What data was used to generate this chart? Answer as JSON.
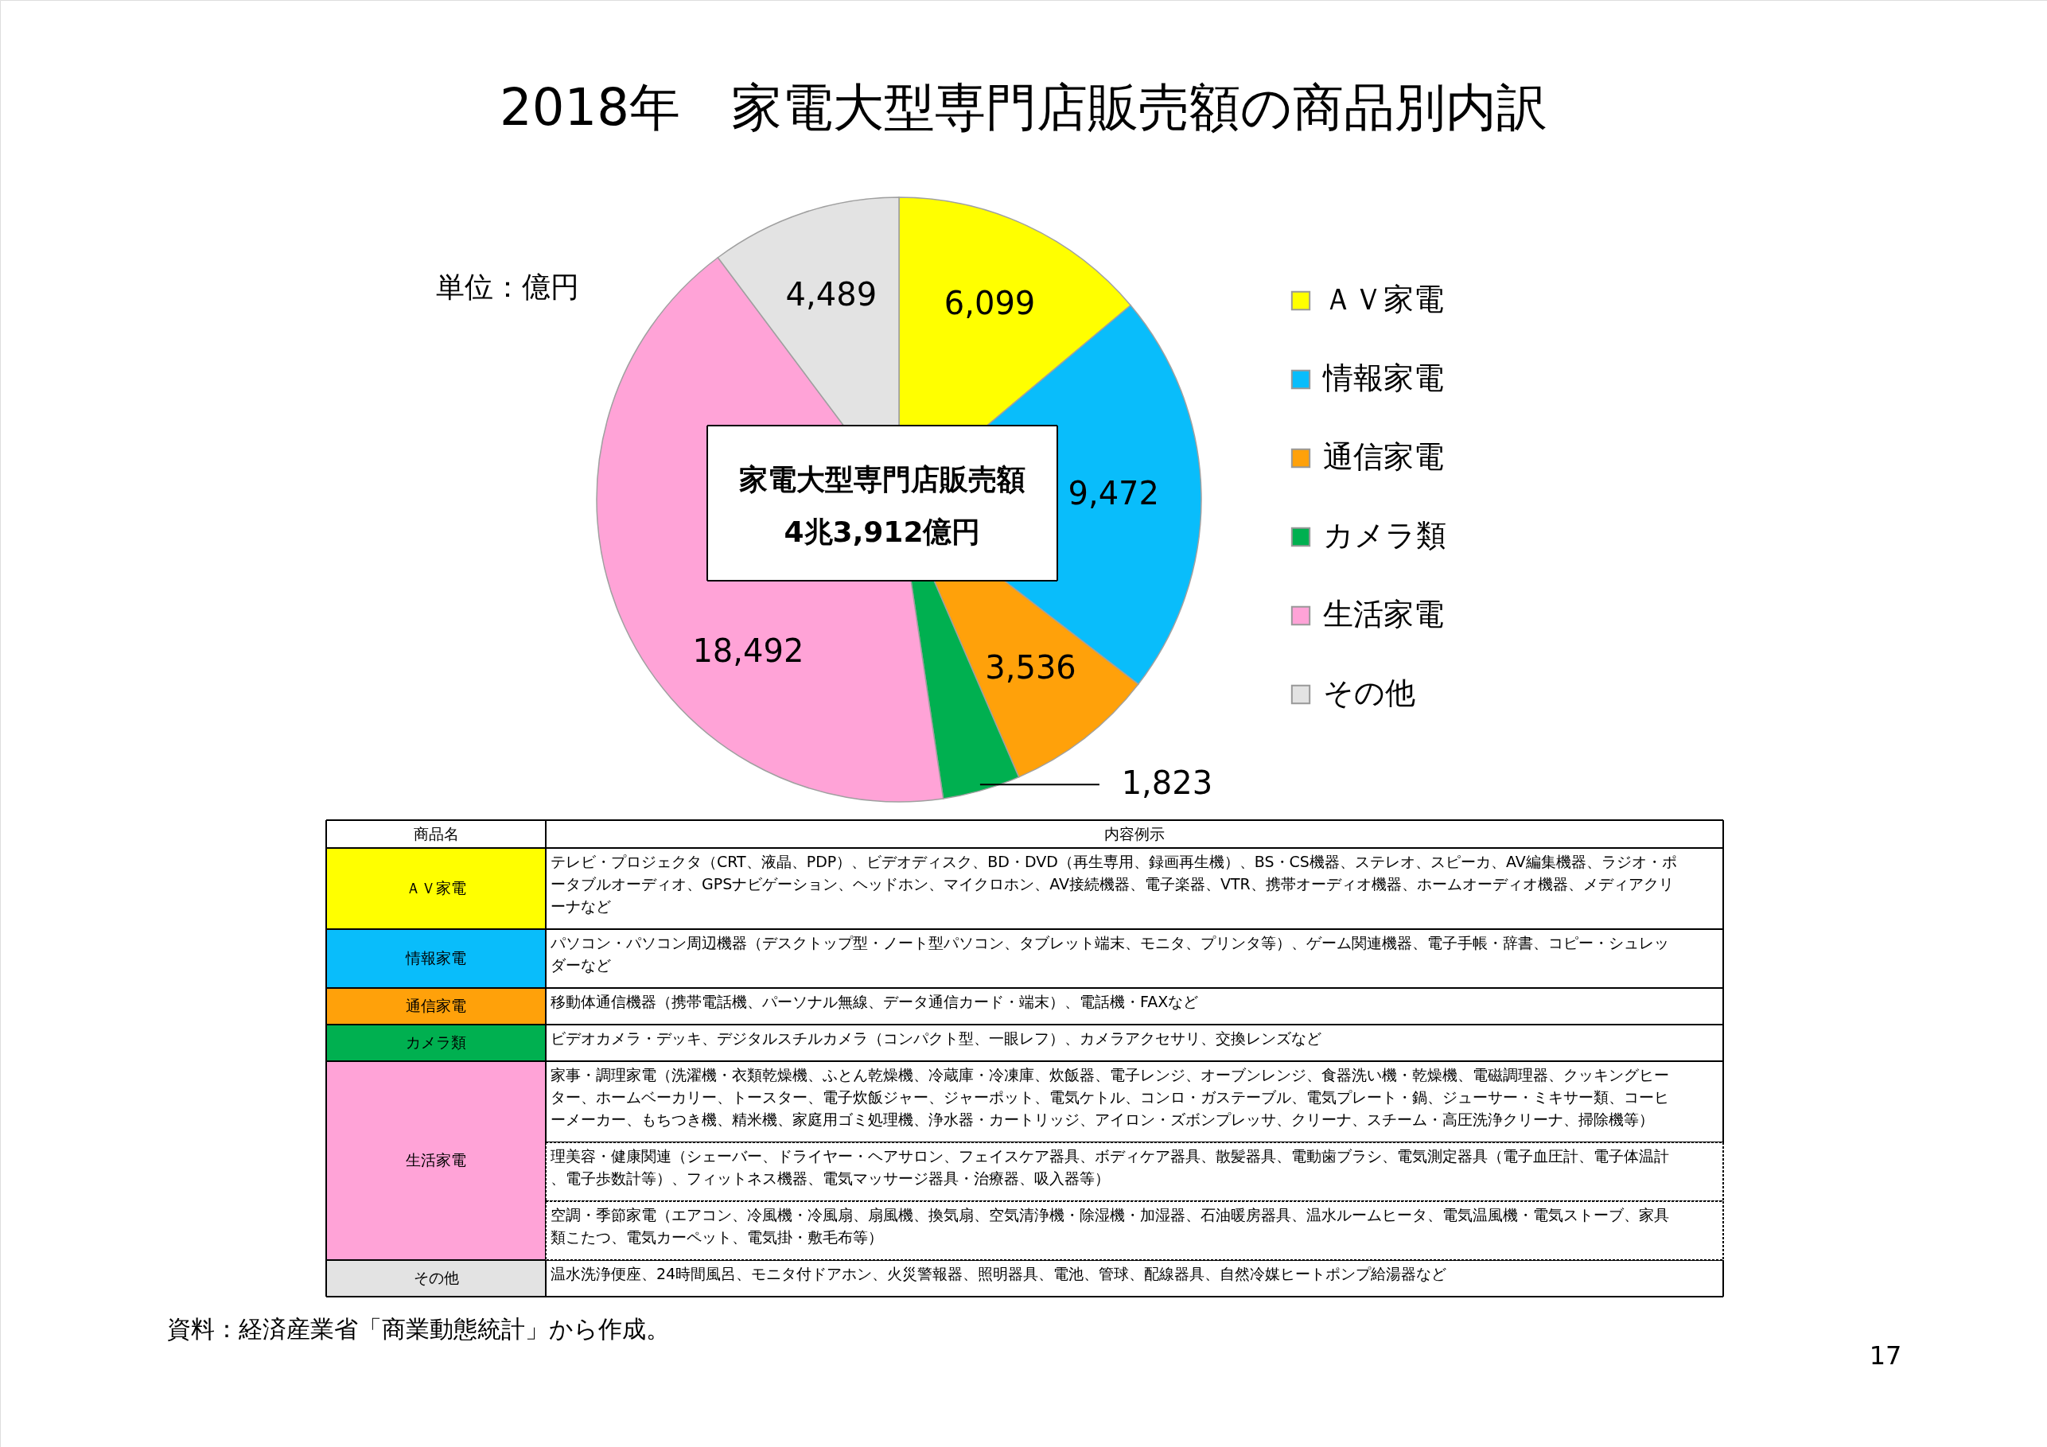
{
  "chart_data": {
    "type": "pie",
    "title": "2018年　家電大型専門店販売額の商品別内訳",
    "categories": [
      "ＡＶ家電",
      "情報家電",
      "通信家電",
      "カメラ類",
      "生活家電",
      "その他"
    ],
    "values": [
      6099,
      9472,
      3536,
      1823,
      18492,
      4489
    ],
    "colors": [
      "#ffff00",
      "#09bdfb",
      "#ffa10a",
      "#00b050",
      "#ffa3d7",
      "#e3e3e3"
    ],
    "value_labels": [
      "6,099",
      "9,472",
      "3,536",
      "1,823",
      "18,492",
      "4,489"
    ],
    "legend": "right",
    "annotations": [
      "単位：億円",
      "家電大型専門店販売額",
      "4兆3,912億円",
      "商品名",
      "内容例示",
      "テレビ・プロジェクタ（CRT、液晶、PDP）、ビデオディスク、BD・DVD（再生専用、録画再生機）、BS・CS機器、ステレオ、スピーカ、AV編集機器、ラジオ・ポータブルオーディオ、GPSナビゲーション、ヘッドホン、マイクロホン、AV接続機器、電子楽器、VTR、携帯オーディオ機器、ホームオーディオ機器、メディアクリーナなど",
      "パソコン・パソコン周辺機器（デスクトップ型・ノート型パソコン、タブレット端末、モニタ、プリンタ等）、ゲーム関連機器、電子手帳・辞書、コピー・シュレッダーなど",
      "移動体通信機器（携帯電話機、パーソナル無線、データ通信カード・端末）、電話機・FAXなど",
      "ビデオカメラ・デッキ、デジタルスチルカメラ（コンパクト型、一眼レフ）、カメラアクセサリ、交換レンズなど",
      "家事・調理家電（洗濯機・衣類乾燥機、ふとん乾燥機、冷蔵庫・冷凍庫、炊飯器、電子レンジ、オーブンレンジ、食器洗い機・乾燥機、電磁調理器、クッキングヒーター、ホームベーカリー、トースター、電子炊飯ジャー、ジャーポット、電気ケトル、コンロ・ガステーブル、電気プレート・鍋、ジューサー・ミキサー類、コーヒーメーカー、もちつき機、精米機、家庭用ゴミ処理機、浄水器・カートリッジ、アイロン・ズボンプレッサ、クリーナ、スチーム・高圧洗浄クリーナ、掃除機等）",
      "理美容・健康関連（シェーバー、ドライヤー・ヘアサロン、フェイスケア器具、ボディケア器具、散髪器具、電動歯ブラシ、電気測定器具（電子血圧計、電子体温計、電子歩数計等）、フィットネス機器、電気マッサージ器具・治療器、吸入器等）",
      "空調・季節家電（エアコン、冷風機・冷風扇、扇風機、換気扇、空気清浄機・除湿機・加湿器、石油暖房器具、温水ルームヒータ、電気温風機・電気ストーブ、家具類こたつ、電気カーペット、電気掛・敷毛布等）",
      "温水洗浄便座、24時間風呂、モニタ付ドアホン、火災警報器、照明器具、電池、管球、配線器具、自然冷媒ヒートポンプ給湯器など",
      "資料：経済産業省「商業動態統計」から作成。",
      "17"
    ]
  }
}
